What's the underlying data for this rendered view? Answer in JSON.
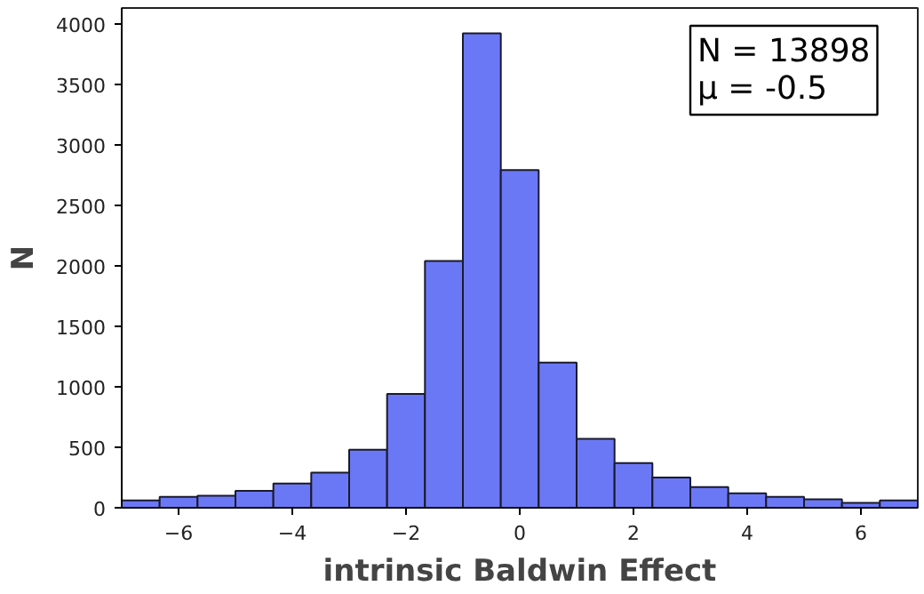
{
  "chart_data": {
    "type": "histogram",
    "xlabel": "intrinsic Baldwin Effect",
    "ylabel": "N",
    "bins": [
      -7,
      -6.333,
      -5.667,
      -5,
      -4.333,
      -3.667,
      -3,
      -2.333,
      -1.667,
      -1,
      -0.333,
      0.333,
      1,
      1.667,
      2.333,
      3,
      3.667,
      4.333,
      5,
      5.667,
      6.333,
      7
    ],
    "values": [
      60,
      90,
      100,
      140,
      200,
      290,
      480,
      940,
      2040,
      3920,
      2790,
      1200,
      570,
      370,
      250,
      170,
      120,
      90,
      70,
      40,
      60
    ],
    "color": "#6b78f5",
    "xlim": [
      -7,
      7
    ],
    "xticks": [
      {
        "value": -6,
        "label": "−6"
      },
      {
        "value": -4,
        "label": "−4"
      },
      {
        "value": -2,
        "label": "−2"
      },
      0,
      2,
      4,
      6
    ],
    "ylim": [
      0,
      4130
    ],
    "yticks": [
      0,
      500,
      1000,
      1500,
      2000,
      2500,
      3000,
      3500,
      4000
    ],
    "annotations": [
      "N = 13898",
      "μ = -0.5"
    ],
    "grid": false
  }
}
